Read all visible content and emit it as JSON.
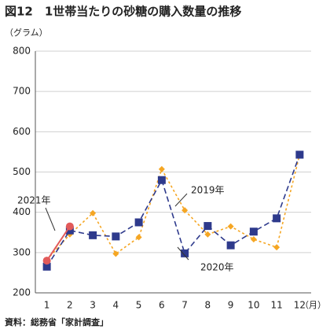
{
  "chart_data": {
    "type": "line",
    "title": "図12　1世帯当たりの砂糖の購入数量の推移",
    "y_unit": "（グラム）",
    "x_unit": "（月）",
    "source": "資料：総務省「家計調査」",
    "categories": [
      "1",
      "2",
      "3",
      "4",
      "5",
      "6",
      "7",
      "8",
      "9",
      "10",
      "11",
      "12"
    ],
    "ylim": [
      200,
      800
    ],
    "yticks": [
      200,
      300,
      400,
      500,
      600,
      700,
      800
    ],
    "grid": true,
    "series": [
      {
        "name": "2020年",
        "color": "#2e3a8c",
        "marker": "square",
        "dash": "dashed",
        "values": [
          265,
          355,
          343,
          340,
          375,
          480,
          298,
          366,
          318,
          352,
          385,
          543
        ]
      },
      {
        "name": "2019年",
        "color": "#f5a623",
        "marker": "diamond",
        "dash": "dotted",
        "values": [
          282,
          345,
          398,
          297,
          338,
          507,
          405,
          345,
          365,
          333,
          313,
          543
        ]
      },
      {
        "name": "2021年",
        "color": "#e25a5a",
        "marker": "circle",
        "dash": "solid",
        "values": [
          280,
          365,
          null,
          null,
          null,
          null,
          null,
          null,
          null,
          null,
          null,
          null
        ]
      }
    ]
  }
}
